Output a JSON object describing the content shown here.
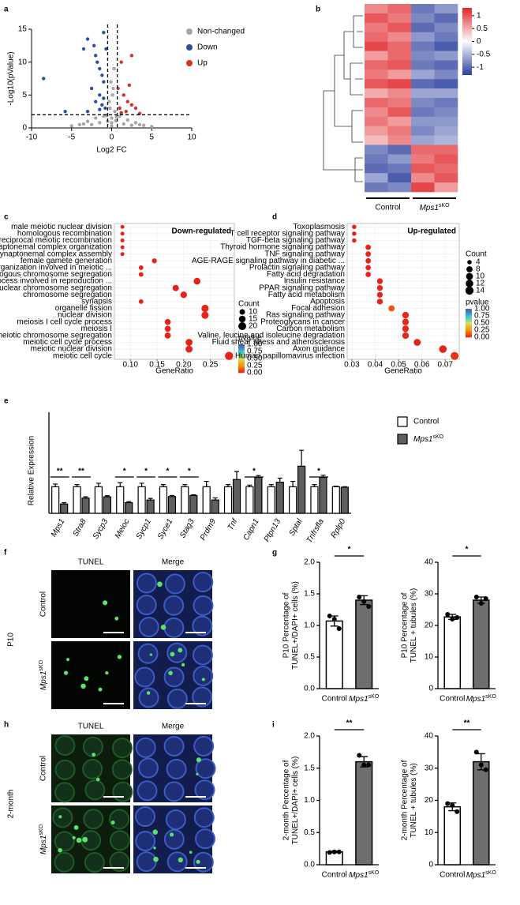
{
  "chart_data": [
    {
      "type": "scatter",
      "label": "a",
      "xlabel": "Log2 FC",
      "ylabel": "-Log10(pValue)",
      "xlim": [
        -10,
        10
      ],
      "xticks": [
        -10,
        -5,
        0,
        5,
        10
      ],
      "ylim": [
        0,
        15
      ],
      "yticks": [
        0,
        5,
        10,
        15
      ],
      "threshold_x": [
        -0.5,
        0.7
      ],
      "threshold_y": 2,
      "series": [
        {
          "name": "Non-changed",
          "color": "#a6a6a6",
          "x": [
            -4,
            -3,
            -2,
            -1,
            0,
            0,
            1,
            2,
            3,
            4,
            -0.3,
            0.2,
            0.3,
            -0.2,
            0.4,
            -5,
            5,
            -1.5,
            1.5,
            0,
            -0.5,
            0.5,
            -2.5,
            2.5,
            -0.1,
            0.1,
            -3.5,
            3.5,
            -0.6,
            0.6
          ],
          "y": [
            0.5,
            1,
            1.5,
            1.8,
            0.3,
            1.5,
            1.8,
            1.2,
            0.8,
            0.4,
            4,
            6,
            9,
            3,
            2.5,
            0.3,
            0.2,
            0.8,
            0.6,
            0.8,
            1,
            1.1,
            0.5,
            0.4,
            7,
            5,
            0.6,
            0.5,
            1.9,
            1.7
          ]
        },
        {
          "name": "Down",
          "color": "#2f4fa5",
          "x": [
            -8.5,
            -5.8,
            -3.5,
            -3,
            -2.2,
            -2,
            -1.8,
            -1.5,
            -1.2,
            -1,
            -2.5,
            -1.5,
            -1,
            -2,
            -1.2,
            -0.8,
            -1.5,
            -3,
            -0.7,
            -1
          ],
          "y": [
            7.5,
            2.5,
            12,
            13.5,
            12.5,
            11,
            10,
            9,
            8,
            7,
            6,
            5,
            4.5,
            4,
            3.5,
            3,
            2.8,
            2.5,
            12,
            14.5
          ]
        },
        {
          "name": "Up",
          "color": "#d7302a",
          "x": [
            2.5,
            1.2,
            1.5,
            2,
            2.5,
            1,
            3,
            1.8,
            1.2,
            3.5,
            0.8,
            2.2
          ],
          "y": [
            11,
            10,
            5,
            4,
            3.5,
            3,
            3,
            2.5,
            2.3,
            2.2,
            6,
            6.5
          ]
        }
      ]
    },
    {
      "type": "heatmap",
      "label": "b",
      "groups": [
        "Control",
        {
          "italic": "Mps1",
          "sup": "sKO"
        }
      ],
      "clim": [
        -1.3,
        1.3
      ],
      "colorscale": [
        "#2b3f9e",
        "#ffffff",
        "#e0262a"
      ],
      "colorbar_ticks": [
        1,
        0.5,
        0,
        -0.5,
        -1
      ],
      "matrix": [
        [
          0.7,
          0.9,
          -0.9,
          -0.7
        ],
        [
          1.0,
          0.8,
          -0.8,
          -1.0
        ],
        [
          0.8,
          1.0,
          -1.0,
          -0.8
        ],
        [
          0.9,
          0.7,
          -0.7,
          -0.9
        ],
        [
          1.1,
          0.9,
          -0.9,
          -1.1
        ],
        [
          0.6,
          0.9,
          -0.8,
          -0.7
        ],
        [
          0.9,
          1.0,
          -0.9,
          -1.0
        ],
        [
          0.8,
          0.6,
          -0.6,
          -0.8
        ],
        [
          1.0,
          1.1,
          -1.0,
          -1.1
        ],
        [
          0.5,
          0.7,
          -0.6,
          -0.6
        ],
        [
          0.9,
          0.8,
          -0.8,
          -0.9
        ],
        [
          0.7,
          1.0,
          -0.9,
          -0.8
        ],
        [
          0.8,
          0.6,
          -0.7,
          -0.7
        ],
        [
          0.6,
          0.8,
          -0.8,
          -0.6
        ],
        [
          0.4,
          0.7,
          -0.6,
          -0.5
        ],
        [
          -0.8,
          -1.0,
          0.9,
          0.9
        ],
        [
          -0.9,
          -0.7,
          0.8,
          1.0
        ],
        [
          -1.0,
          -0.9,
          1.0,
          0.9
        ],
        [
          -0.6,
          -1.1,
          0.7,
          1.0
        ],
        [
          -0.9,
          -0.8,
          1.1,
          0.6
        ]
      ]
    },
    {
      "type": "dot",
      "label": "c",
      "title": "Down-regulated",
      "xlabel": "GeneRatio",
      "xlim": [
        0.07,
        0.295
      ],
      "xticks": [
        {
          "value": 0.1,
          "label": "0.10"
        },
        {
          "value": 0.15,
          "label": "0.15"
        },
        {
          "value": 0.2,
          "label": "0.20"
        },
        {
          "value": 0.25,
          "label": "0.25"
        }
      ],
      "grid": true,
      "categories": [
        "male meiotic nuclear division",
        "homologous recombination",
        "reciprocal meiotic recombination",
        "synaptonemal complex organization",
        "synaptonemal complex assembly",
        "female gamete generation",
        "chromosome organization involved in meiotic ...",
        "homologous chromosome segregation",
        "cellular process involved in reproduction ...",
        "nuclear chromosome segregation",
        "chromosome segregation",
        "synapsis",
        "organelle fission",
        "nuclear division",
        "meiosis I cell cycle process",
        "meiosis I",
        "meiotic chromosome segregation",
        "meiotic cell cycle process",
        "meiotic nuclear division",
        "meiotic cell cycle"
      ],
      "values": [
        0.085,
        0.085,
        0.085,
        0.085,
        0.085,
        0.145,
        0.12,
        0.12,
        0.225,
        0.185,
        0.2,
        0.12,
        0.24,
        0.24,
        0.17,
        0.17,
        0.17,
        0.21,
        0.21,
        0.285
      ],
      "counts": [
        5,
        5,
        5,
        5,
        5,
        8,
        7,
        7,
        15,
        13,
        14,
        7,
        17,
        17,
        12,
        12,
        12,
        16,
        16,
        22
      ],
      "pvalues": [
        0.02,
        0.02,
        0.02,
        0.02,
        0.02,
        0.02,
        0.02,
        0.02,
        0.02,
        0.02,
        0.02,
        0.02,
        0.02,
        0.02,
        0.02,
        0.02,
        0.02,
        0.02,
        0.02,
        0.02
      ],
      "count_title": "Count",
      "count_ticks": [
        10,
        15,
        20
      ],
      "pvalue_title": "pvalue",
      "pvalue_ticks": [
        {
          "value": 1,
          "label": "1.00"
        },
        {
          "value": 0.75,
          "label": "0.75"
        },
        {
          "value": 0.5,
          "label": "0.50"
        },
        {
          "value": 0.25,
          "label": "0.25"
        },
        {
          "value": 0,
          "label": "0.00"
        }
      ],
      "colormap": [
        "#e41a1c",
        "#ff8c00",
        "#d4e157",
        "#26c6da",
        "#5e4fa2"
      ]
    },
    {
      "type": "dot",
      "label": "d",
      "title": "Up-regulated",
      "xlabel": "GeneRatio",
      "xlim": [
        0.028,
        0.076
      ],
      "xticks": [
        {
          "value": 0.03,
          "label": "0.03"
        },
        {
          "value": 0.04,
          "label": "0.04"
        },
        {
          "value": 0.05,
          "label": "0.05"
        },
        {
          "value": 0.06,
          "label": "0.06"
        },
        {
          "value": 0.07,
          "label": "0.07"
        }
      ],
      "grid": true,
      "categories": [
        "Toxoplasmosis",
        "T cell receptor signaling pathway",
        "TGF-beta signaling pathway",
        "Thyroid hormone signaling pathway",
        "TNF signaling pathway",
        "AGE-RAGE signaling pathway in diabetic ...",
        "Prolactin signaling pathway",
        "Fatty acid degradation",
        "Insulin resistance",
        "PPAR signaling pathway",
        "Fatty acid metabolism",
        "Apoptosis",
        "Focal adhesion",
        "Ras signaling pathway",
        "Proteoglycans in cancer",
        "Carbon metabolism",
        "Valine, leucine and isoleucine degradation",
        "Fluid shear stress and atherosclerosis",
        "Axon guidance",
        "Human papillomavirus infection"
      ],
      "values": [
        0.031,
        0.031,
        0.031,
        0.037,
        0.037,
        0.037,
        0.037,
        0.037,
        0.042,
        0.042,
        0.042,
        0.042,
        0.047,
        0.053,
        0.053,
        0.053,
        0.053,
        0.058,
        0.069,
        0.074
      ],
      "counts": [
        4,
        4,
        4,
        6,
        6,
        6,
        6,
        6,
        7,
        7,
        7,
        7,
        8,
        9,
        9,
        9,
        9,
        10,
        12,
        13
      ],
      "pvalues": [
        0.02,
        0.02,
        0.02,
        0.02,
        0.02,
        0.02,
        0.02,
        0.02,
        0.02,
        0.02,
        0.02,
        0.02,
        0.12,
        0.03,
        0.03,
        0.03,
        0.03,
        0.02,
        0.02,
        0.05
      ],
      "count_title": "Count",
      "count_ticks": [
        4,
        8,
        10,
        12,
        14
      ],
      "pvalue_title": "pvalue",
      "pvalue_ticks": [
        {
          "value": 1,
          "label": "1.00"
        },
        {
          "value": 0.75,
          "label": "0.75"
        },
        {
          "value": 0.5,
          "label": "0.50"
        },
        {
          "value": 0.25,
          "label": "0.25"
        },
        {
          "value": 0,
          "label": "0.00"
        }
      ],
      "colormap": [
        "#e41a1c",
        "#ff8c00",
        "#d4e157",
        "#26c6da",
        "#5e4fa2"
      ]
    },
    {
      "type": "grouped_bar",
      "label": "e",
      "ylabel": "Relative Expression",
      "ylim": [
        0,
        3.8
      ],
      "categories": [
        "Mps1",
        "Stra8",
        "Sycp3",
        "Meioc",
        "Sycp1",
        "Syce1",
        "Stag3",
        "Prdm9",
        "Tnf",
        "Capn1",
        "Ptpn13",
        "Sptal",
        "Tnfrsfla",
        "Rplp0"
      ],
      "series": [
        {
          "name": "Control",
          "color": "#ffffff",
          "values": [
            1,
            1,
            1,
            1,
            1,
            1,
            1,
            1,
            1,
            1,
            1,
            1,
            1,
            1
          ],
          "errors": [
            0.1,
            0.08,
            0.13,
            0.15,
            0.13,
            0.08,
            0.08,
            0.2,
            0.08,
            0.06,
            0.08,
            0.2,
            0.08,
            0.02
          ]
        },
        {
          "name": {
            "italic": "Mps1",
            "sup": "sKO"
          },
          "color": "#5f5f5f",
          "values": [
            0.35,
            0.57,
            0.62,
            0.4,
            0.5,
            0.63,
            0.67,
            0.5,
            1.27,
            1.35,
            1.17,
            1.77,
            1.35,
            0.98
          ],
          "errors": [
            0.05,
            0.05,
            0.04,
            0.04,
            0.06,
            0.04,
            0.03,
            0.08,
            0.3,
            0.07,
            0.15,
            0.6,
            0.08,
            0.02
          ]
        }
      ],
      "significance": [
        "**",
        "**",
        null,
        "*",
        "*",
        "*",
        "*",
        null,
        null,
        "*",
        null,
        null,
        "*",
        null
      ]
    },
    {
      "type": "image",
      "label": "f",
      "group": "P10",
      "columns": [
        "TUNEL",
        "Merge"
      ],
      "rows": [
        "Control",
        {
          "italic": "Mps1",
          "sup": "sKO"
        }
      ]
    },
    {
      "type": "bar",
      "label": "g",
      "ylabel": [
        "P10 Percentage of",
        "TUNEL+/DAPI+ cells (%)"
      ],
      "categories": [
        "Control",
        {
          "italic": "Mps1",
          "sup": "sKO"
        }
      ],
      "values": [
        1.07,
        1.4
      ],
      "errors": [
        0.08,
        0.07
      ],
      "points": [
        [
          1.15,
          1.1,
          0.95
        ],
        [
          1.45,
          1.38,
          1.3
        ]
      ],
      "colors": [
        "#ffffff",
        "#6e6e6e"
      ],
      "ylim": [
        0,
        2
      ],
      "yticks": [
        {
          "value": 0,
          "label": "0.0"
        },
        {
          "value": 0.5,
          "label": "0.5"
        },
        {
          "value": 1,
          "label": "1.0"
        },
        {
          "value": 1.5,
          "label": "1.5"
        },
        {
          "value": 2,
          "label": "2.0"
        }
      ],
      "significance": "*"
    },
    {
      "type": "bar",
      "ylabel": [
        "P10 Percentage of",
        "TUNEL + tubules (%)"
      ],
      "categories": [
        "Control",
        {
          "italic": "Mps1",
          "sup": "sKO"
        }
      ],
      "values": [
        22.7,
        28
      ],
      "errors": [
        0.8,
        1
      ],
      "points": [
        [
          23.5,
          22,
          22.5
        ],
        [
          29,
          27,
          28.5
        ]
      ],
      "colors": [
        "#ffffff",
        "#6e6e6e"
      ],
      "ylim": [
        0,
        40
      ],
      "yticks": [
        0,
        10,
        20,
        30,
        40
      ],
      "significance": "*"
    },
    {
      "type": "image",
      "label": "h",
      "group": "2-month",
      "columns": [
        "TUNEL",
        "Merge"
      ],
      "rows": [
        "Control",
        {
          "italic": "Mps1",
          "sup": "sKO"
        }
      ]
    },
    {
      "type": "bar",
      "label": "i",
      "ylabel": [
        "2-month Percentage of",
        "TUNEL+/DAPI+ cells (%)"
      ],
      "categories": [
        "Control",
        {
          "italic": "Mps1",
          "sup": "sKO"
        }
      ],
      "values": [
        0.2,
        1.6
      ],
      "errors": [
        0.01,
        0.08
      ],
      "points": [
        [
          0.19,
          0.2,
          0.2
        ],
        [
          1.7,
          1.55,
          1.55
        ]
      ],
      "colors": [
        "#ffffff",
        "#6e6e6e"
      ],
      "ylim": [
        0,
        2
      ],
      "yticks": [
        {
          "value": 0,
          "label": "0.0"
        },
        {
          "value": 0.5,
          "label": "0.5"
        },
        {
          "value": 1,
          "label": "1.0"
        },
        {
          "value": 1.5,
          "label": "1.5"
        },
        {
          "value": 2,
          "label": "2.0"
        }
      ],
      "significance": "**"
    },
    {
      "type": "bar",
      "ylabel": [
        "2-month Percentage of",
        "TUNEL + tubules (%)"
      ],
      "categories": [
        "Control",
        {
          "italic": "Mps1",
          "sup": "sKO"
        }
      ],
      "values": [
        18,
        32
      ],
      "errors": [
        1.2,
        2.5
      ],
      "points": [
        [
          19,
          18.5,
          16.5
        ],
        [
          35,
          31,
          29.5
        ]
      ],
      "colors": [
        "#ffffff",
        "#6e6e6e"
      ],
      "ylim": [
        0,
        40
      ],
      "yticks": [
        0,
        10,
        20,
        30,
        40
      ],
      "significance": "**"
    }
  ]
}
